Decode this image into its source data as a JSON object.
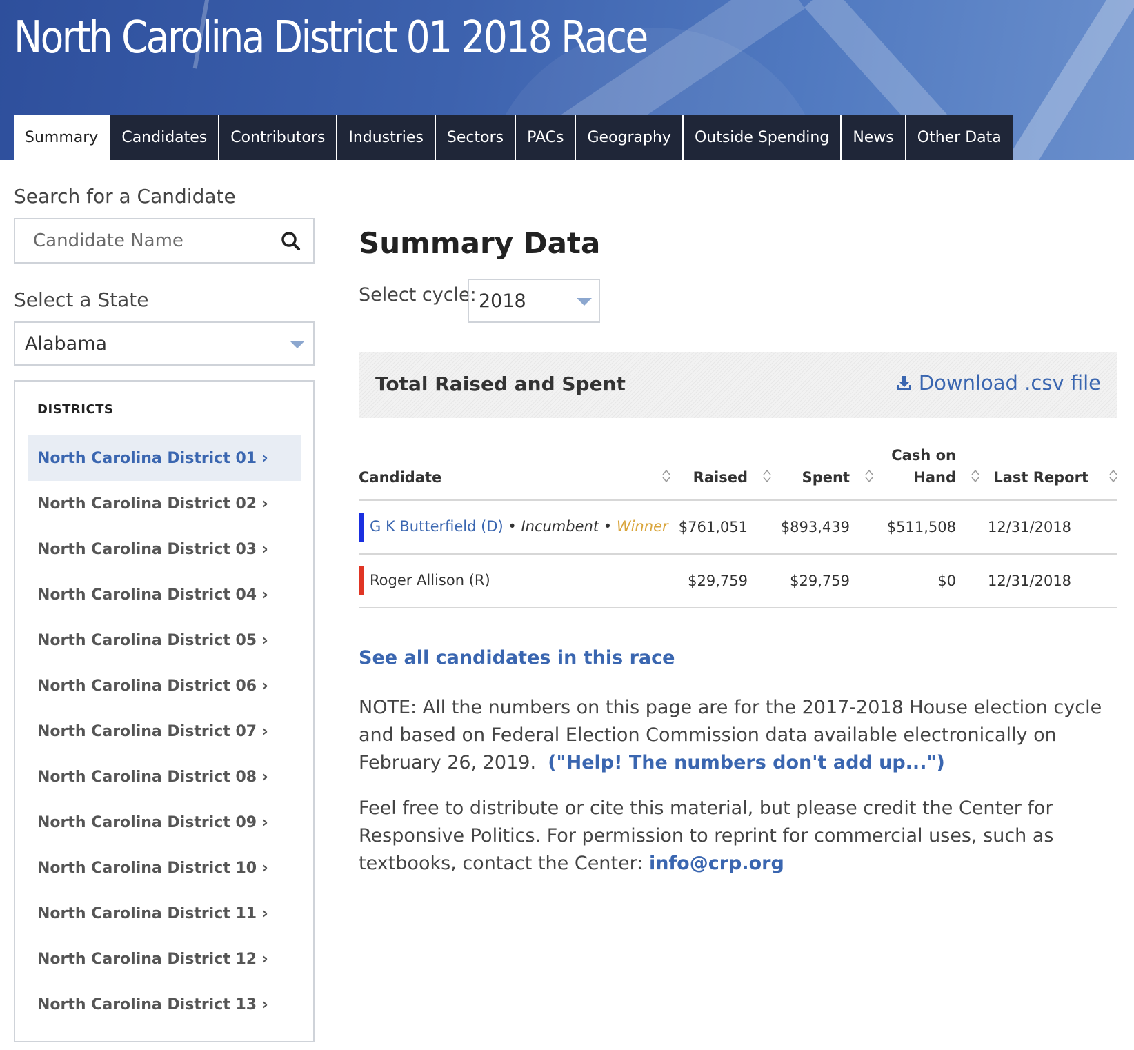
{
  "header": {
    "title": "North Carolina District 01 2018 Race"
  },
  "tabs": [
    {
      "label": "Summary",
      "active": true
    },
    {
      "label": "Candidates"
    },
    {
      "label": "Contributors"
    },
    {
      "label": "Industries"
    },
    {
      "label": "Sectors"
    },
    {
      "label": "PACs"
    },
    {
      "label": "Geography"
    },
    {
      "label": "Outside Spending"
    },
    {
      "label": "News"
    },
    {
      "label": "Other Data"
    }
  ],
  "sidebar": {
    "search_label": "Search for a Candidate",
    "search_placeholder": "Candidate Name",
    "state_label": "Select a State",
    "state_value": "Alabama",
    "districts_heading": "DISTRICTS",
    "districts": [
      {
        "label": "North Carolina District 01 ›",
        "active": true
      },
      {
        "label": "North Carolina District 02 ›"
      },
      {
        "label": "North Carolina District 03 ›"
      },
      {
        "label": "North Carolina District 04 ›"
      },
      {
        "label": "North Carolina District 05 ›"
      },
      {
        "label": "North Carolina District 06 ›"
      },
      {
        "label": "North Carolina District 07 ›"
      },
      {
        "label": "North Carolina District 08 ›"
      },
      {
        "label": "North Carolina District 09 ›"
      },
      {
        "label": "North Carolina District 10 ›"
      },
      {
        "label": "North Carolina District 11 ›"
      },
      {
        "label": "North Carolina District 12 ›"
      },
      {
        "label": "North Carolina District 13 ›"
      }
    ]
  },
  "main": {
    "title": "Summary Data",
    "cycle_label": "Select cycle:",
    "cycle_value": "2018",
    "total_title": "Total Raised and Spent",
    "download_label": "Download .csv file",
    "table": {
      "headers": {
        "candidate": "Candidate",
        "raised": "Raised",
        "spent": "Spent",
        "cash_line1": "Cash on",
        "cash_line2": "Hand",
        "last_report": "Last Report"
      },
      "rows": [
        {
          "name": "G K Butterfield (D)",
          "party_color": "#1a2fe0",
          "incumbent": "Incumbent",
          "winner": "Winner",
          "separator": "•",
          "raised": "$761,051",
          "spent": "$893,439",
          "cash": "$511,508",
          "last_report": "12/31/2018"
        },
        {
          "name": "Roger Allison (R)",
          "party_color": "#e03524",
          "raised": "$29,759",
          "spent": "$29,759",
          "cash": "$0",
          "last_report": "12/31/2018"
        }
      ]
    },
    "see_all": "See all candidates in this race",
    "note_text": "NOTE: All the numbers on this page are for the 2017-2018 House election cycle and based on Federal Election Commission data available electronically on February 26, 2019.",
    "note_link": "(\"Help! The numbers don't add up...\")",
    "credit_text": "Feel free to distribute or cite this material, but please credit the Center for Responsive Politics. For permission to reprint for commercial uses, such as textbooks, contact the Center:",
    "credit_email": "info@crp.org"
  },
  "colors": {
    "accent_blue": "#3a66b0",
    "nav_dark": "#1f2638",
    "winner_gold": "#d9a53c"
  }
}
